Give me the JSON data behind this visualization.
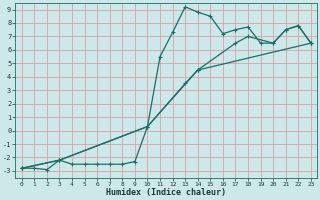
{
  "background_color": "#cce8e8",
  "grid_color": "#d8a0a8",
  "line_color": "#1a6e65",
  "xlabel": "Humidex (Indice chaleur)",
  "ylim": [
    -3.5,
    9.5
  ],
  "xlim": [
    -0.5,
    23.5
  ],
  "yticks": [
    -3,
    -2,
    -1,
    0,
    1,
    2,
    3,
    4,
    5,
    6,
    7,
    8,
    9
  ],
  "xticks": [
    0,
    1,
    2,
    3,
    4,
    5,
    6,
    7,
    8,
    9,
    10,
    11,
    12,
    13,
    14,
    15,
    16,
    17,
    18,
    19,
    20,
    21,
    22,
    23
  ],
  "series": [
    {
      "x": [
        0,
        1,
        2,
        3,
        4,
        5,
        6,
        7,
        8,
        9,
        10,
        11,
        12,
        13,
        14,
        15,
        16,
        17,
        18,
        19,
        20,
        21,
        22,
        23
      ],
      "y": [
        -2.8,
        -2.8,
        -2.9,
        -2.2,
        -2.5,
        -2.5,
        -2.5,
        -2.5,
        -2.5,
        -2.3,
        0.3,
        5.5,
        7.3,
        9.2,
        8.8,
        8.5,
        7.2,
        7.5,
        7.7,
        6.5,
        6.5,
        7.5,
        7.8,
        6.5
      ]
    },
    {
      "x": [
        0,
        3,
        10,
        13,
        14,
        17,
        18,
        20,
        21,
        22,
        23
      ],
      "y": [
        -2.8,
        -2.2,
        0.3,
        3.5,
        4.5,
        6.5,
        7.0,
        6.5,
        7.5,
        7.8,
        6.5
      ]
    },
    {
      "x": [
        0,
        3,
        10,
        14,
        23
      ],
      "y": [
        -2.8,
        -2.2,
        0.3,
        4.5,
        6.5
      ]
    }
  ]
}
